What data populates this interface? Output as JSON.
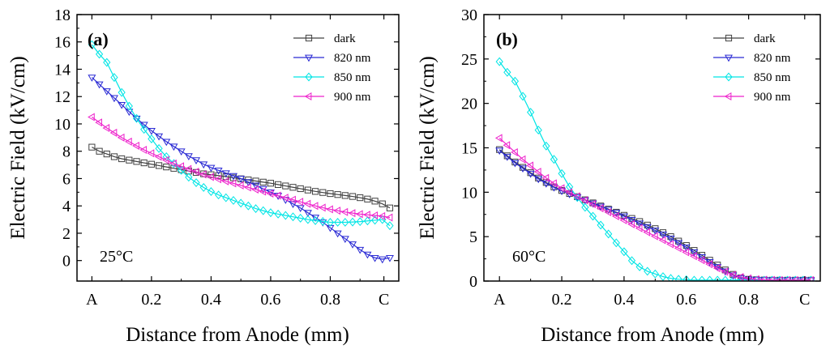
{
  "chart_data": [
    {
      "type": "line",
      "panel_label": "(a)",
      "annotation": "25°C",
      "xlabel": "Distance from Anode (mm)",
      "ylabel": "Electric Field (kV/cm)",
      "xlim": [
        -0.05,
        1.03
      ],
      "ylim": [
        -1.5,
        18
      ],
      "xticks": [
        0,
        0.2,
        0.4,
        0.6,
        0.8,
        0.98
      ],
      "xtick_labels": [
        "A",
        "0.2",
        "0.4",
        "0.6",
        "0.8",
        "C"
      ],
      "yticks": [
        0,
        2,
        4,
        6,
        8,
        10,
        12,
        14,
        16,
        18
      ],
      "ytick_labels": [
        "0",
        "2",
        "4",
        "6",
        "8",
        "10",
        "12",
        "14",
        "16",
        "18"
      ],
      "x": [
        0,
        0.025,
        0.05,
        0.075,
        0.1,
        0.125,
        0.15,
        0.175,
        0.2,
        0.225,
        0.25,
        0.275,
        0.3,
        0.325,
        0.35,
        0.375,
        0.4,
        0.425,
        0.45,
        0.475,
        0.5,
        0.525,
        0.55,
        0.575,
        0.6,
        0.625,
        0.65,
        0.675,
        0.7,
        0.725,
        0.75,
        0.775,
        0.8,
        0.825,
        0.85,
        0.875,
        0.9,
        0.925,
        0.95,
        0.975,
        1.0
      ],
      "series": [
        {
          "name": "dark",
          "color": "#404040",
          "marker": "square",
          "values": [
            8.3,
            8.0,
            7.8,
            7.6,
            7.45,
            7.35,
            7.25,
            7.15,
            7.05,
            6.95,
            6.85,
            6.75,
            6.65,
            6.55,
            6.45,
            6.35,
            6.28,
            6.22,
            6.14,
            6.06,
            5.98,
            5.9,
            5.82,
            5.74,
            5.66,
            5.56,
            5.46,
            5.36,
            5.26,
            5.16,
            5.06,
            4.98,
            4.9,
            4.83,
            4.76,
            4.69,
            4.6,
            4.5,
            4.35,
            4.15,
            3.85
          ]
        },
        {
          "name": "820 nm",
          "color": "#2a2ad4",
          "marker": "triangle-down",
          "values": [
            13.4,
            12.9,
            12.4,
            11.9,
            11.4,
            10.9,
            10.4,
            9.95,
            9.5,
            9.1,
            8.7,
            8.35,
            8.0,
            7.65,
            7.35,
            7.05,
            6.8,
            6.6,
            6.4,
            6.2,
            6.0,
            5.75,
            5.5,
            5.25,
            5.0,
            4.75,
            4.45,
            4.15,
            3.85,
            3.5,
            3.15,
            2.8,
            2.4,
            2.0,
            1.6,
            1.2,
            0.8,
            0.45,
            0.2,
            0.1,
            0.2
          ]
        },
        {
          "name": "850 nm",
          "color": "#00e5e5",
          "marker": "diamond",
          "values": [
            15.8,
            15.1,
            14.5,
            13.4,
            12.3,
            11.3,
            10.4,
            9.6,
            8.9,
            8.2,
            7.6,
            7.1,
            6.6,
            6.1,
            5.7,
            5.35,
            5.05,
            4.8,
            4.6,
            4.4,
            4.2,
            4.0,
            3.8,
            3.65,
            3.5,
            3.4,
            3.3,
            3.2,
            3.1,
            3.0,
            2.92,
            2.86,
            2.8,
            2.8,
            2.8,
            2.82,
            2.85,
            2.9,
            2.95,
            3.0,
            2.55
          ]
        },
        {
          "name": "900 nm",
          "color": "#ee22cc",
          "marker": "triangle-left",
          "values": [
            10.5,
            10.1,
            9.7,
            9.35,
            9.0,
            8.7,
            8.4,
            8.1,
            7.85,
            7.6,
            7.35,
            7.1,
            6.9,
            6.7,
            6.5,
            6.3,
            6.12,
            5.95,
            5.8,
            5.65,
            5.5,
            5.35,
            5.2,
            5.05,
            4.9,
            4.75,
            4.6,
            4.45,
            4.3,
            4.15,
            4.0,
            3.87,
            3.75,
            3.65,
            3.55,
            3.47,
            3.4,
            3.35,
            3.3,
            3.25,
            3.15
          ]
        }
      ]
    },
    {
      "type": "line",
      "panel_label": "(b)",
      "annotation": "60°C",
      "xlabel": "Distance from Anode (mm)",
      "ylabel": "Electric Field (kV/cm)",
      "xlim": [
        -0.05,
        1.03
      ],
      "ylim": [
        0,
        30
      ],
      "xticks": [
        0,
        0.2,
        0.4,
        0.6,
        0.8,
        0.98
      ],
      "xtick_labels": [
        "A",
        "0.2",
        "0.4",
        "0.6",
        "0.8",
        "C"
      ],
      "yticks": [
        0,
        5,
        10,
        15,
        20,
        25,
        30
      ],
      "ytick_labels": [
        "0",
        "5",
        "10",
        "15",
        "20",
        "25",
        "30"
      ],
      "x": [
        0,
        0.025,
        0.05,
        0.075,
        0.1,
        0.125,
        0.15,
        0.175,
        0.2,
        0.225,
        0.25,
        0.275,
        0.3,
        0.325,
        0.35,
        0.375,
        0.4,
        0.425,
        0.45,
        0.475,
        0.5,
        0.525,
        0.55,
        0.575,
        0.6,
        0.625,
        0.65,
        0.675,
        0.7,
        0.725,
        0.75,
        0.775,
        0.8,
        0.825,
        0.85,
        0.875,
        0.9,
        0.925,
        0.95,
        0.975,
        1.0
      ],
      "series": [
        {
          "name": "dark",
          "color": "#404040",
          "marker": "square",
          "values": [
            14.8,
            14.1,
            13.4,
            12.8,
            12.2,
            11.6,
            11.1,
            10.6,
            10.2,
            9.85,
            9.5,
            9.15,
            8.8,
            8.45,
            8.1,
            7.75,
            7.4,
            7.05,
            6.7,
            6.3,
            5.9,
            5.45,
            5.0,
            4.5,
            4.0,
            3.45,
            2.9,
            2.35,
            1.8,
            1.25,
            0.75,
            0.35,
            0.2,
            0.15,
            0.12,
            0.1,
            0.1,
            0.1,
            0.1,
            0.1,
            0.1
          ]
        },
        {
          "name": "820 nm",
          "color": "#2a2ad4",
          "marker": "triangle-down",
          "values": [
            14.7,
            14.0,
            13.3,
            12.7,
            12.1,
            11.5,
            11.0,
            10.55,
            10.15,
            9.8,
            9.45,
            9.1,
            8.75,
            8.4,
            8.05,
            7.7,
            7.3,
            6.9,
            6.5,
            6.1,
            5.7,
            5.25,
            4.8,
            4.3,
            3.8,
            3.25,
            2.7,
            2.15,
            1.6,
            1.1,
            0.65,
            0.35,
            0.2,
            0.15,
            0.12,
            0.1,
            0.1,
            0.1,
            0.1,
            0.1,
            0.1
          ]
        },
        {
          "name": "850 nm",
          "color": "#00e5e5",
          "marker": "diamond",
          "values": [
            24.7,
            23.5,
            22.5,
            20.8,
            19.0,
            17.0,
            15.2,
            13.7,
            12.1,
            10.6,
            9.4,
            8.3,
            7.3,
            6.3,
            5.3,
            4.3,
            3.3,
            2.3,
            1.6,
            1.1,
            0.8,
            0.5,
            0.3,
            0.2,
            0.15,
            0.1,
            0.1,
            0.1,
            0.1,
            0.1,
            0.1,
            0.1,
            0.1,
            0.1,
            0.1,
            0.1,
            0.1,
            0.1,
            0.1,
            0.1,
            0.1
          ]
        },
        {
          "name": "900 nm",
          "color": "#ee22cc",
          "marker": "triangle-left",
          "values": [
            16.1,
            15.3,
            14.5,
            13.7,
            13.0,
            12.3,
            11.6,
            11.0,
            10.45,
            10.0,
            9.55,
            9.1,
            8.65,
            8.2,
            7.75,
            7.3,
            6.85,
            6.4,
            5.95,
            5.5,
            5.05,
            4.6,
            4.15,
            3.7,
            3.25,
            2.8,
            2.35,
            1.9,
            1.45,
            1.05,
            0.7,
            0.45,
            0.3,
            0.2,
            0.15,
            0.12,
            0.1,
            0.1,
            0.1,
            0.1,
            0.1
          ]
        }
      ]
    }
  ]
}
